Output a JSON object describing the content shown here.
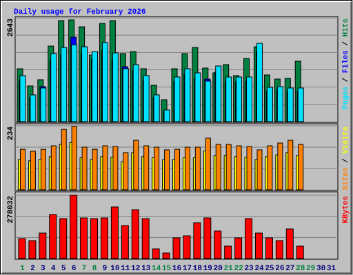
{
  "chart_data": [
    {
      "type": "bar",
      "title": "Daily usage for February 2026",
      "categories": [
        "1",
        "2",
        "3",
        "4",
        "5",
        "6",
        "7",
        "8",
        "9",
        "10",
        "11",
        "12",
        "13",
        "14",
        "15",
        "16",
        "17",
        "18",
        "19",
        "20",
        "21",
        "22",
        "23",
        "24",
        "25",
        "26",
        "27",
        "28",
        "29",
        "30",
        "31"
      ],
      "legend_separator": " / ",
      "series": [
        {
          "name": "Pages",
          "color": "#00E0FF",
          "values": [
            1173,
            683,
            858,
            1733,
            1890,
            1960,
            1908,
            1785,
            2013,
            1750,
            1348,
            1453,
            1173,
            683,
            298,
            1138,
            1348,
            1243,
            1033,
            1418,
            1138,
            1138,
            1138,
            1995,
            875,
            893,
            858,
            858,
            null,
            null,
            null
          ]
        },
        {
          "name": "Files",
          "color": "#0000FF",
          "values": [
            1050,
            610,
            893,
            1560,
            1700,
            2153,
            1720,
            1600,
            1810,
            1570,
            1400,
            1300,
            1050,
            610,
            260,
            1020,
            1210,
            1110,
            1085,
            1270,
            1020,
            1020,
            1020,
            1790,
            780,
            800,
            770,
            770,
            null,
            null,
            null
          ]
        },
        {
          "name": "Hits",
          "color": "#008040",
          "values": [
            1348,
            910,
            1068,
            1925,
            2573,
            2590,
            2415,
            1698,
            2503,
            2573,
            1733,
            1785,
            1348,
            928,
            560,
            1348,
            1733,
            1890,
            1365,
            1243,
            1453,
            1173,
            1610,
            1908,
            1190,
            1085,
            1103,
            1540,
            null,
            null,
            null
          ]
        }
      ],
      "ylim": [
        0,
        2643
      ],
      "yticks": [
        2643
      ]
    },
    {
      "type": "bar",
      "categories": [
        "1",
        "2",
        "3",
        "4",
        "5",
        "6",
        "7",
        "8",
        "9",
        "10",
        "11",
        "12",
        "13",
        "14",
        "15",
        "16",
        "17",
        "18",
        "19",
        "20",
        "21",
        "22",
        "23",
        "24",
        "25",
        "26",
        "27",
        "28",
        "29",
        "30",
        "31"
      ],
      "legend_separator": " / ",
      "series": [
        {
          "name": "Sites",
          "color": "#FF8000",
          "values": [
            148,
            141,
            148,
            161,
            221,
            231,
            156,
            148,
            161,
            158,
            136,
            181,
            161,
            156,
            146,
            148,
            156,
            156,
            189,
            166,
            166,
            161,
            158,
            146,
            161,
            171,
            181,
            166,
            null,
            null,
            null
          ]
        },
        {
          "name": "Visits",
          "color": "#FFFF00",
          "values": [
            111,
            106,
            111,
            121,
            166,
            173,
            117,
            111,
            121,
            119,
            102,
            136,
            121,
            117,
            110,
            111,
            117,
            117,
            142,
            125,
            125,
            121,
            119,
            110,
            121,
            128,
            136,
            125,
            null,
            null,
            null
          ]
        }
      ],
      "ylim": [
        0,
        234
      ],
      "yticks": [
        234
      ]
    },
    {
      "type": "bar",
      "categories": [
        "1",
        "2",
        "3",
        "4",
        "5",
        "6",
        "7",
        "8",
        "9",
        "10",
        "11",
        "12",
        "13",
        "14",
        "15",
        "16",
        "17",
        "18",
        "19",
        "20",
        "21",
        "22",
        "23",
        "24",
        "25",
        "26",
        "27",
        "28",
        "29",
        "30",
        "31"
      ],
      "category_colors": [
        "#008040",
        "#000080",
        "#000080",
        "#000080",
        "#000080",
        "#000080",
        "#008040",
        "#008040",
        "#000080",
        "#000080",
        "#000080",
        "#000080",
        "#000080",
        "#008040",
        "#008040",
        "#000080",
        "#000080",
        "#000080",
        "#000080",
        "#000080",
        "#008040",
        "#008040",
        "#000080",
        "#000080",
        "#000080",
        "#000080",
        "#000080",
        "#008040",
        "#008040",
        "#000080",
        "#000080"
      ],
      "series": [
        {
          "name": "KBytes",
          "color": "#FF0000",
          "values": [
            87640,
            78575,
            111817,
            193414,
            175280,
            278032,
            178302,
            175280,
            178302,
            226657,
            145060,
            214568,
            175280,
            42310,
            24177,
            90662,
            99728,
            157146,
            178302,
            120883,
            54397,
            90662,
            175280,
            111817,
            90662,
            78575,
            129949,
            54397,
            null,
            null,
            null
          ]
        }
      ],
      "ylim": [
        0,
        278032
      ],
      "yticks": [
        278032
      ]
    }
  ]
}
